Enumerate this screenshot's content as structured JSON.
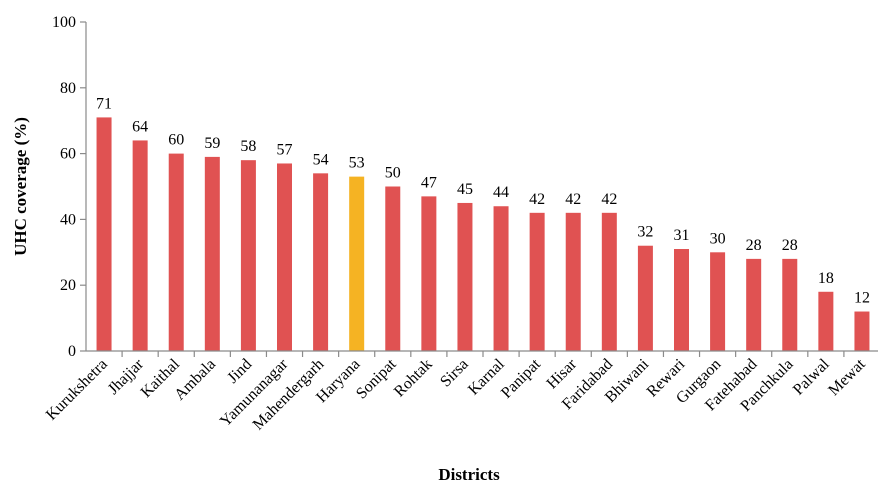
{
  "chart_data": {
    "type": "bar",
    "xlabel": "Districts",
    "ylabel": "UHC coverage (%)",
    "ylim": [
      0,
      100
    ],
    "yticks": [
      0,
      20,
      40,
      60,
      80,
      100
    ],
    "grid": false,
    "legend": "none",
    "categories": [
      "Kurukshetra",
      "Jhajjar",
      "Kaithal",
      "Ambala",
      "Jind",
      "Yamunanagar",
      "Mahendergarh",
      "Haryana",
      "Sonipat",
      "Rohtak",
      "Sirsa",
      "Karnal",
      "Panipat",
      "Hisar",
      "Faridabad",
      "Bhiwani",
      "Rewari",
      "Gurgaon",
      "Fatehabad",
      "Panchkula",
      "Palwal",
      "Mewat"
    ],
    "values": [
      71,
      64,
      60,
      59,
      58,
      57,
      54,
      53,
      50,
      47,
      45,
      44,
      42,
      42,
      42,
      32,
      31,
      30,
      28,
      28,
      18,
      12
    ],
    "data_labels": [
      "71",
      "64",
      "60",
      "59",
      "58",
      "57",
      "54",
      "53",
      "50",
      "47",
      "45",
      "44",
      "42",
      "42",
      "42",
      "32",
      "31",
      "30",
      "28",
      "28",
      "18",
      "12"
    ],
    "colors": {
      "bar": "#e05252",
      "highlight": "#f5b323",
      "axis": "#8a8a8a"
    },
    "highlight_category": "Haryana"
  }
}
